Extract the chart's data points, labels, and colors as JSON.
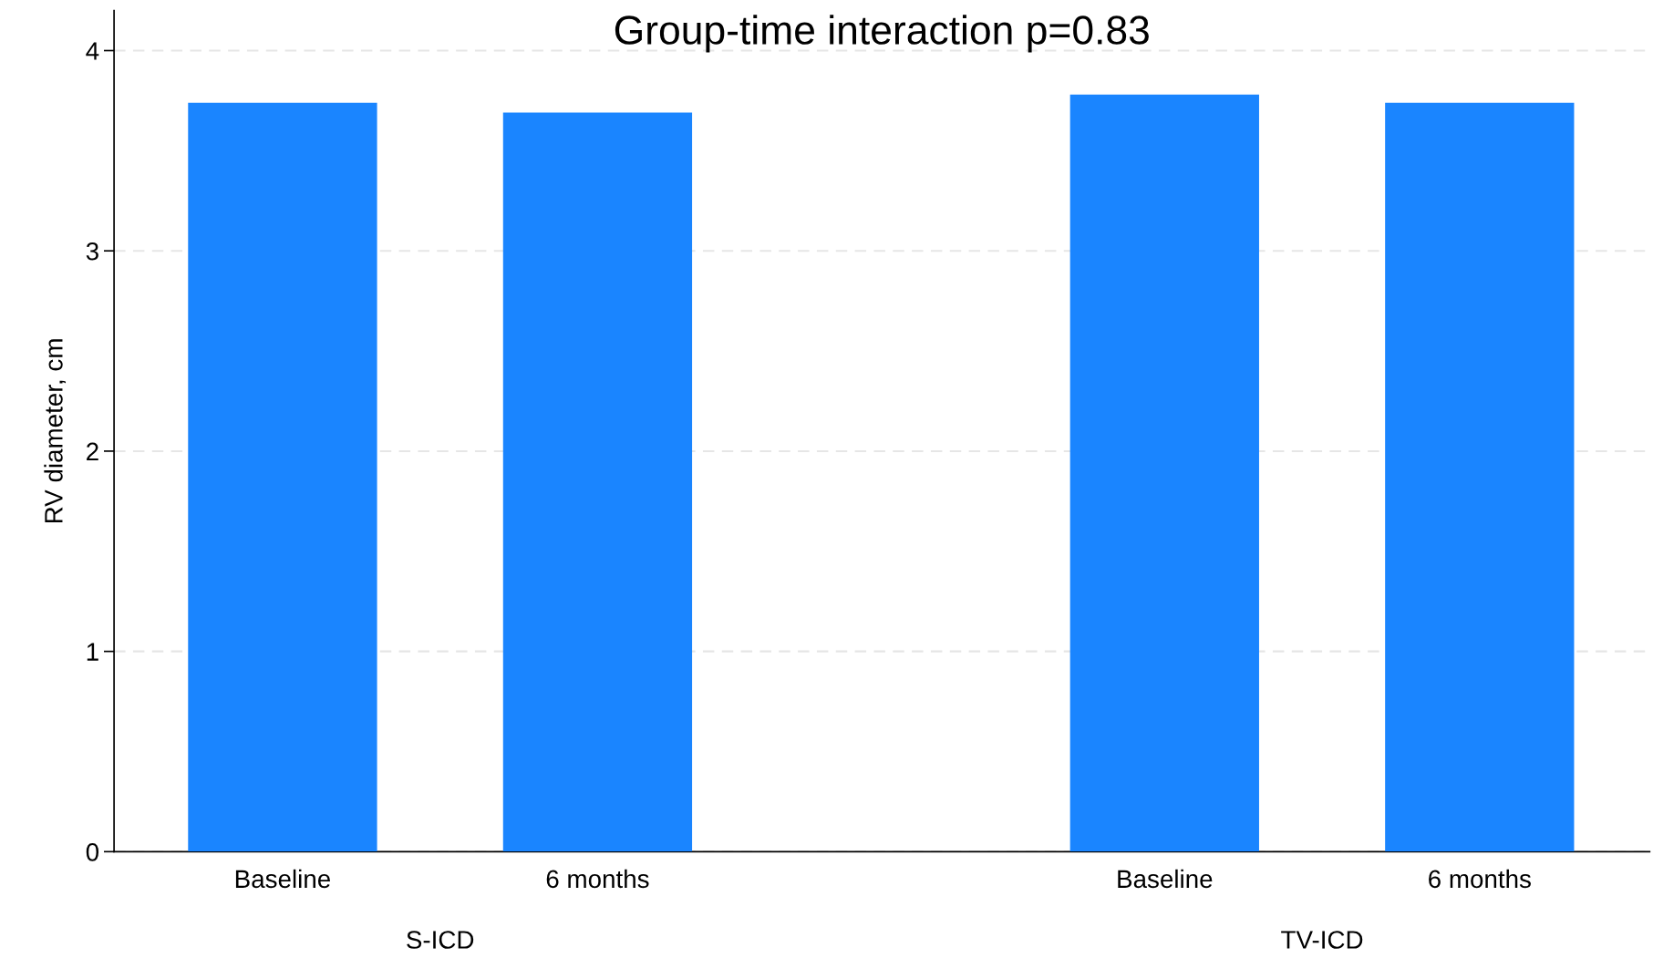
{
  "chart_data": {
    "type": "bar",
    "title": "Group-time interaction p=0.83",
    "ylabel": "RV diameter, cm",
    "categories": [
      "Baseline",
      "6 months",
      "Baseline",
      "6 months"
    ],
    "values": [
      3.74,
      3.69,
      3.78,
      3.74
    ],
    "color": "#1a85ff",
    "annotations": [
      "S-ICD",
      "TV-ICD"
    ],
    "ylim": [
      0,
      4.2
    ],
    "yticks": [
      0,
      1,
      2,
      3,
      4
    ],
    "grid": "y"
  }
}
